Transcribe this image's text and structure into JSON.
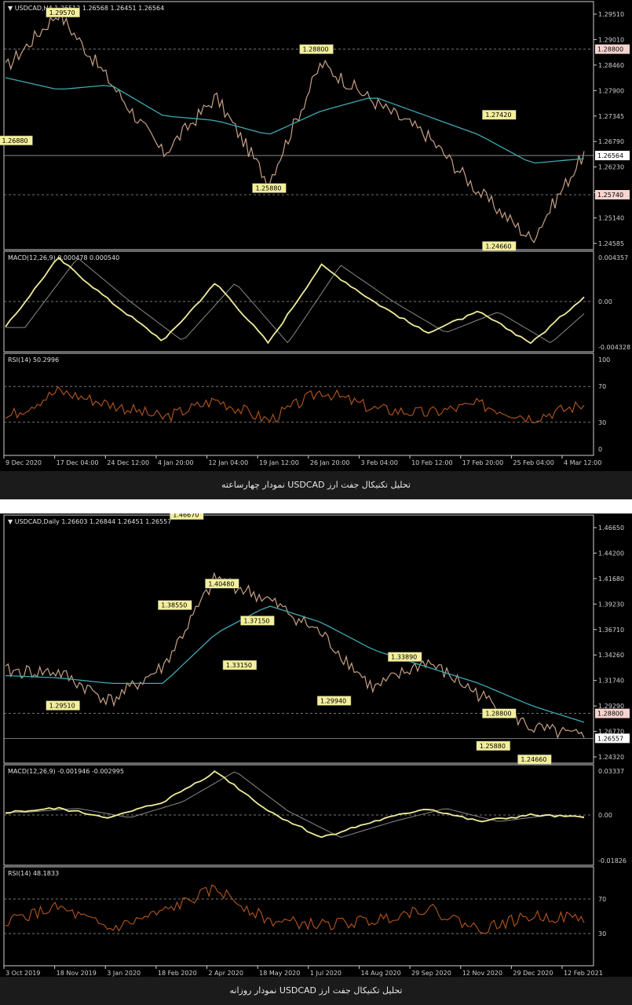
{
  "colors": {
    "background": "#000000",
    "price_line": "#c8a186",
    "ma_line": "#3fa9b4",
    "macd_line": "#f0ec9a",
    "macd_signal": "#8a8a8a",
    "rsi_line": "#b5561d",
    "axis": "#cfcfcf",
    "label_bg": "#f3ef9c",
    "label_text": "#000000",
    "price_tag_bg": "#ffffff"
  },
  "charts": [
    {
      "id": "h4",
      "caption": "تحلیل تکنیکال جفت ارز USDCAD نمودار چهارساعته",
      "price_header": "USDCAD,H4  1.26512 1.26568 1.26451 1.26564",
      "macd_header": "MACD(12,26,9) 0.000478 0.000540",
      "rsi_header": "RSI(14) 50.2996",
      "price_ticks": [
        "1.29510",
        "1.29010",
        "1.28460",
        "1.27900",
        "1.27345",
        "1.26790",
        "1.26230",
        "1.25690",
        "1.25140",
        "1.24585"
      ],
      "price_tags": [
        {
          "text": "1.28800",
          "value": 1.288,
          "style": "pink"
        },
        {
          "text": "1.26564",
          "value": 1.26564,
          "style": "white"
        },
        {
          "text": "1.25740",
          "value": 1.2574,
          "style": "pink"
        }
      ],
      "macd_ticks": [
        "0.004357",
        "0.00",
        "-0.004328"
      ],
      "rsi_ticks": [
        "100",
        "70",
        "30",
        "0"
      ],
      "x_ticks": [
        "9 Dec 2020",
        "17 Dec 04:00",
        "24 Dec 12:00",
        "4 Jan 20:00",
        "12 Jan 04:00",
        "19 Jan 12:00",
        "26 Jan 20:00",
        "3 Feb 04:00",
        "10 Feb 12:00",
        "17 Feb 20:00",
        "25 Feb 04:00",
        "4 Mar 12:00"
      ],
      "annotations": [
        {
          "text": "1.29570",
          "x": 0.1,
          "value": 1.2957
        },
        {
          "text": "1.26880",
          "x": 0.02,
          "value": 1.2688
        },
        {
          "text": "1.28800",
          "x": 0.53,
          "value": 1.288
        },
        {
          "text": "1.25880",
          "x": 0.45,
          "value": 1.2588
        },
        {
          "text": "1.27420",
          "x": 0.84,
          "value": 1.2742
        },
        {
          "text": "1.24660",
          "x": 0.84,
          "value": 1.2466
        }
      ]
    },
    {
      "id": "daily",
      "caption": "تحلیل تکنیکال جفت ارز USDCAD نمودار روزانه",
      "price_header": "USDCAD,Daily  1.26603 1.26844 1.26451 1.26557",
      "macd_header": "MACD(12,26,9) -0.001946 -0.002995",
      "rsi_header": "RSI(14) 48.1833",
      "price_ticks": [
        "1.46650",
        "1.44200",
        "1.41680",
        "1.39230",
        "1.36710",
        "1.34260",
        "1.31740",
        "1.29290",
        "1.26770",
        "1.24320"
      ],
      "price_tags": [
        {
          "text": "1.28800",
          "value": 1.288,
          "style": "pink"
        },
        {
          "text": "1.26557",
          "value": 1.26557,
          "style": "white"
        }
      ],
      "macd_ticks": [
        "0.03337",
        "0.00",
        "-0.01826"
      ],
      "rsi_ticks": [
        "70",
        "30"
      ],
      "x_ticks": [
        "3 Oct 2019",
        "18 Nov 2019",
        "3 Jan 2020",
        "18 Feb 2020",
        "2 Apr 2020",
        "18 May 2020",
        "1 Jul 2020",
        "14 Aug 2020",
        "29 Sep 2020",
        "12 Nov 2020",
        "29 Dec 2020",
        "12 Feb 2021"
      ],
      "annotations": [
        {
          "text": "1.46670",
          "x": 0.31,
          "value": 1.4667
        },
        {
          "text": "1.38550",
          "x": 0.29,
          "value": 1.3855
        },
        {
          "text": "1.40480",
          "x": 0.37,
          "value": 1.4048
        },
        {
          "text": "1.37150",
          "x": 0.43,
          "value": 1.3715
        },
        {
          "text": "1.33150",
          "x": 0.4,
          "value": 1.3315
        },
        {
          "text": "1.29510",
          "x": 0.1,
          "value": 1.2951
        },
        {
          "text": "1.29940",
          "x": 0.56,
          "value": 1.2994
        },
        {
          "text": "1.33890",
          "x": 0.68,
          "value": 1.3389
        },
        {
          "text": "1.28800",
          "x": 0.84,
          "value": 1.288
        },
        {
          "text": "1.25880",
          "x": 0.83,
          "value": 1.2588
        },
        {
          "text": "1.24660",
          "x": 0.9,
          "value": 1.2466
        }
      ]
    }
  ],
  "chart_data": [
    {
      "type": "line",
      "title": "USDCAD,H4",
      "xlabel": "",
      "ylabel": "",
      "ylim": [
        1.24585,
        1.298
      ],
      "x": [
        "9 Dec 2020",
        "17 Dec 04:00",
        "24 Dec 12:00",
        "4 Jan 20:00",
        "12 Jan 04:00",
        "19 Jan 12:00",
        "26 Jan 20:00",
        "3 Feb 04:00",
        "10 Feb 12:00",
        "17 Feb 20:00",
        "25 Feb 04:00",
        "4 Mar 12:00"
      ],
      "series": [
        {
          "values": [
            1.284,
            1.2957,
            1.281,
            1.266,
            1.278,
            1.26,
            1.285,
            1.277,
            1.27,
            1.258,
            1.248,
            1.266
          ]
        },
        {
          "values": [
            1.282,
            1.2795,
            1.2805,
            1.274,
            1.273,
            1.27,
            1.275,
            1.278,
            1.274,
            1.27,
            1.264,
            1.265
          ]
        }
      ],
      "macd": [
        -0.0025,
        0.0042,
        0.0,
        -0.0038,
        0.0018,
        -0.004,
        0.0035,
        0.0,
        -0.003,
        -0.001,
        -0.004,
        0.0005
      ],
      "rsi": [
        35,
        65,
        50,
        35,
        55,
        32,
        65,
        45,
        40,
        50,
        35,
        50
      ]
    },
    {
      "type": "line",
      "title": "USDCAD,Daily",
      "xlabel": "",
      "ylabel": "",
      "ylim": [
        1.2432,
        1.4665
      ],
      "x": [
        "3 Oct 2019",
        "18 Nov 2019",
        "3 Jan 2020",
        "18 Feb 2020",
        "2 Apr 2020",
        "18 May 2020",
        "1 Jul 2020",
        "14 Aug 2020",
        "29 Sep 2020",
        "12 Nov 2020",
        "29 Dec 2020",
        "12 Feb 2021"
      ],
      "series": [
        {
          "values": [
            1.326,
            1.325,
            1.299,
            1.33,
            1.41,
            1.39,
            1.36,
            1.31,
            1.335,
            1.305,
            1.275,
            1.266
          ]
        },
        {
          "values": [
            1.322,
            1.32,
            1.315,
            1.315,
            1.36,
            1.385,
            1.37,
            1.345,
            1.33,
            1.315,
            1.295,
            1.28
          ]
        }
      ],
      "macd": [
        0.002,
        0.005,
        -0.002,
        0.01,
        0.033,
        0.003,
        -0.017,
        -0.005,
        0.005,
        -0.005,
        0.0,
        -0.002
      ],
      "rsi": [
        45,
        60,
        35,
        55,
        82,
        45,
        40,
        45,
        60,
        35,
        50,
        48
      ]
    }
  ]
}
